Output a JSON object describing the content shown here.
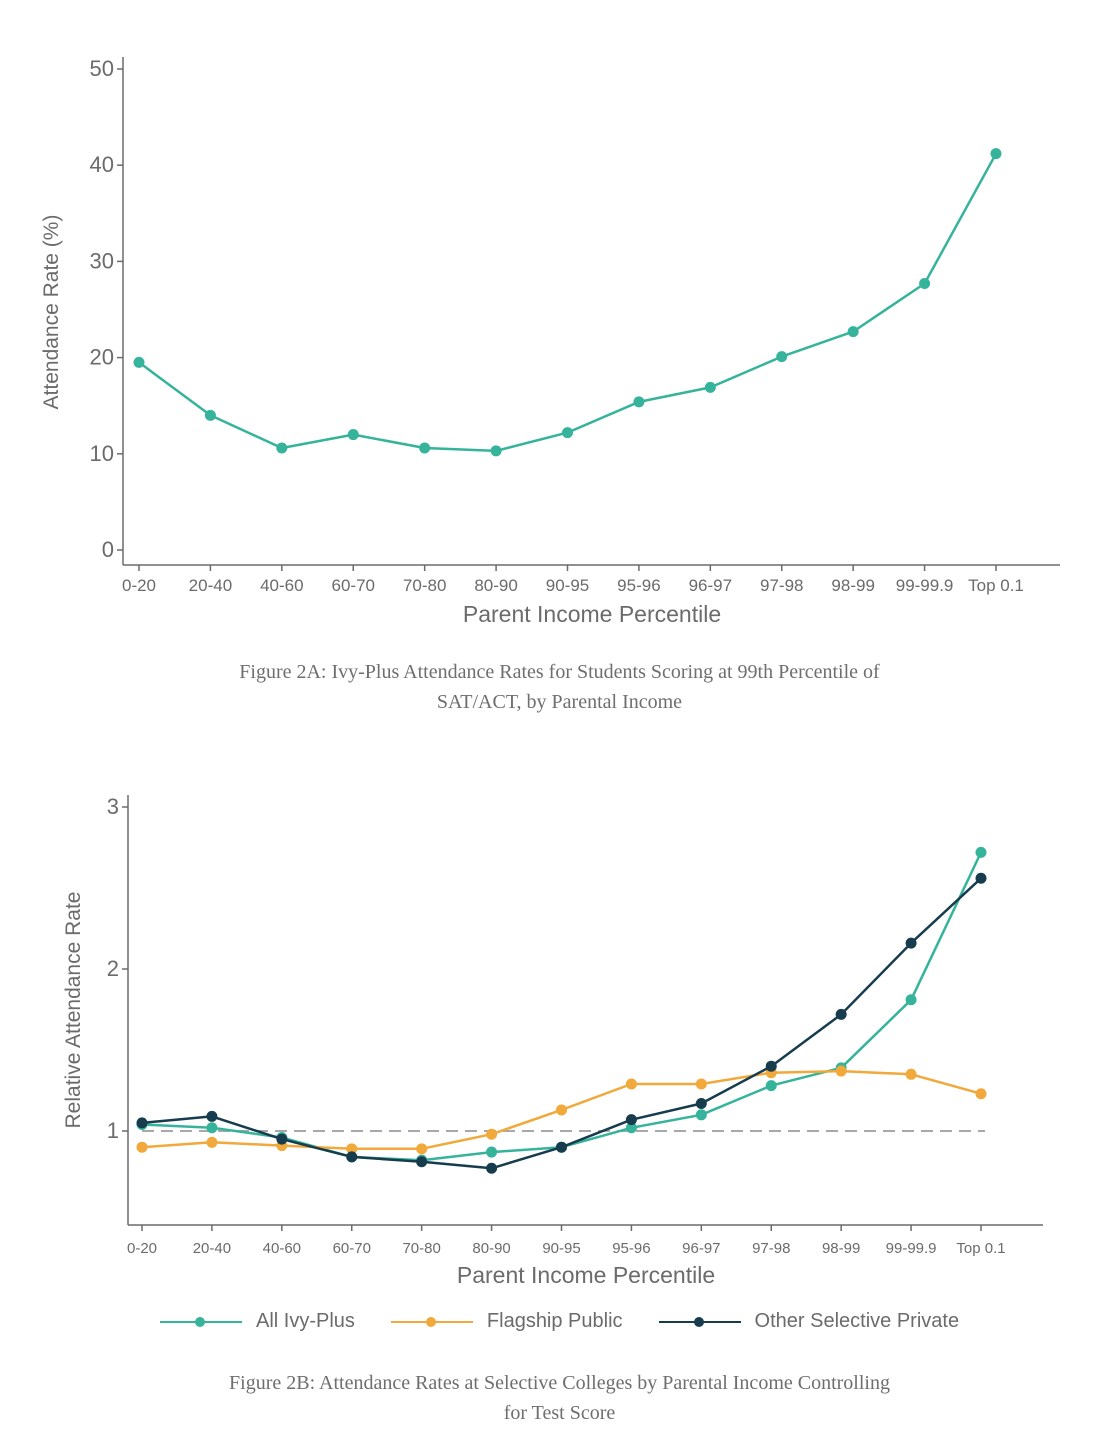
{
  "chart_data": [
    {
      "type": "line",
      "title": "",
      "xlabel": "Parent Income Percentile",
      "ylabel": "Attendance Rate (%)",
      "categories": [
        "0-20",
        "20-40",
        "40-60",
        "60-70",
        "70-80",
        "80-90",
        "90-95",
        "95-96",
        "96-97",
        "97-98",
        "98-99",
        "99-99.9",
        "Top 0.1"
      ],
      "yticks": [
        "0",
        "10",
        "20",
        "30",
        "40",
        "50"
      ],
      "ylim": [
        0,
        50
      ],
      "grid": false,
      "series": [
        {
          "name": "",
          "color": "#35b39b",
          "values": [
            19.5,
            14.0,
            10.6,
            12.0,
            10.6,
            10.3,
            12.2,
            15.4,
            16.9,
            20.1,
            22.7,
            27.7,
            41.2
          ]
        }
      ]
    },
    {
      "type": "line",
      "title": "",
      "xlabel": "Parent Income Percentile",
      "ylabel": "Relative Attendance Rate",
      "categories": [
        "0-20",
        "20-40",
        "40-60",
        "60-70",
        "70-80",
        "80-90",
        "90-95",
        "95-96",
        "96-97",
        "97-98",
        "98-99",
        "99-99.9",
        "Top 0.1"
      ],
      "yticks": [
        "1",
        "2",
        "3"
      ],
      "ylim": [
        0.4,
        3.0
      ],
      "reference_line": 1,
      "grid": false,
      "legend_position": "bottom",
      "series": [
        {
          "name": "All Ivy-Plus",
          "color": "#35b39b",
          "values": [
            1.04,
            1.02,
            0.96,
            0.84,
            0.82,
            0.87,
            0.9,
            1.02,
            1.1,
            1.28,
            1.39,
            1.81,
            2.72
          ]
        },
        {
          "name": "Flagship Public",
          "color": "#f0a93a",
          "values": [
            0.9,
            0.93,
            0.91,
            0.89,
            0.89,
            0.98,
            1.13,
            1.29,
            1.29,
            1.36,
            1.37,
            1.35,
            1.23
          ]
        },
        {
          "name": "Other Selective Private",
          "color": "#163c4e",
          "values": [
            1.05,
            1.09,
            0.95,
            0.84,
            0.81,
            0.77,
            0.9,
            1.07,
            1.17,
            1.4,
            1.72,
            2.16,
            2.56
          ]
        }
      ]
    }
  ],
  "captions": {
    "fig_a_line1": "Figure 2A: Ivy-Plus Attendance Rates for Students Scoring at 99th Percentile of",
    "fig_a_line2": "SAT/ACT, by Parental Income",
    "fig_b_line1": "Figure 2B: Attendance Rates at Selective Colleges by Parental Income Controlling",
    "fig_b_line2": "for Test Score"
  },
  "colors": {
    "axis": "#6b6b6b",
    "reference_line": "#a8a8a8",
    "ivy_plus": "#35b39b",
    "flagship_public": "#f0a93a",
    "other_selective_private": "#163c4e"
  }
}
